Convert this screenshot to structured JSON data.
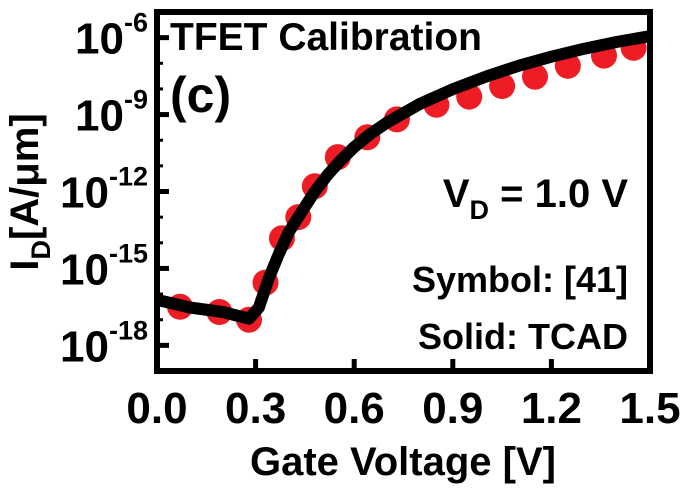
{
  "chart_data": {
    "type": "scatter",
    "title": "TFET Calibration",
    "panel_label": "(c)",
    "xlabel": "Gate Voltage [V]",
    "ylabel": {
      "main": "I",
      "sub": "D",
      "unit": "[A/μm]"
    },
    "x_scale": "linear",
    "y_scale": "log",
    "xlim": [
      0.0,
      1.5
    ],
    "ylim": [
      1e-19,
      1e-05
    ],
    "x_ticks": [
      "0.0",
      "0.3",
      "0.6",
      "0.9",
      "1.2",
      "1.5"
    ],
    "y_ticks": [
      {
        "base": "10",
        "exp": "-6"
      },
      {
        "base": "10",
        "exp": "-9"
      },
      {
        "base": "10",
        "exp": "-12"
      },
      {
        "base": "10",
        "exp": "-15"
      },
      {
        "base": "10",
        "exp": "-18"
      }
    ],
    "annotations": {
      "vd": {
        "prefix": "V",
        "sub": "D",
        "rest": " = 1.0 V"
      },
      "symbol": "Symbol: [41]",
      "solid": "Solid: TCAD"
    },
    "grid": false,
    "series": [
      {
        "style": "markers",
        "color": "#ee1c25",
        "x": [
          0.07,
          0.19,
          0.28,
          0.33,
          0.38,
          0.43,
          0.48,
          0.55,
          0.64,
          0.73,
          0.85,
          0.95,
          1.05,
          1.15,
          1.25,
          1.36,
          1.45
        ],
        "y": [
          3.2e-17,
          2e-17,
          1e-17,
          2.8e-16,
          1.5e-14,
          1e-13,
          1.6e-12,
          2.2e-11,
          1.3e-10,
          6.5e-10,
          2.4e-09,
          5e-09,
          1.3e-08,
          3e-08,
          8e-08,
          2e-07,
          4e-07
        ]
      },
      {
        "style": "line",
        "color": "#000000",
        "x": [
          0.0,
          0.1,
          0.2,
          0.28,
          0.31,
          0.34,
          0.37,
          0.4,
          0.44,
          0.48,
          0.52,
          0.56,
          0.6,
          0.65,
          0.7,
          0.8,
          0.9,
          1.0,
          1.1,
          1.2,
          1.3,
          1.4,
          1.5
        ],
        "y": [
          6e-17,
          3e-17,
          2e-17,
          1.1e-17,
          3e-17,
          4e-16,
          3.5e-15,
          2.5e-14,
          1.6e-13,
          1e-12,
          4.6e-12,
          1.7e-11,
          5.4e-11,
          1.8e-10,
          4.9e-10,
          2.6e-09,
          9.8e-09,
          3e-08,
          8e-08,
          1.8e-07,
          3.7e-07,
          6.8e-07,
          1.15e-06
        ]
      }
    ]
  }
}
